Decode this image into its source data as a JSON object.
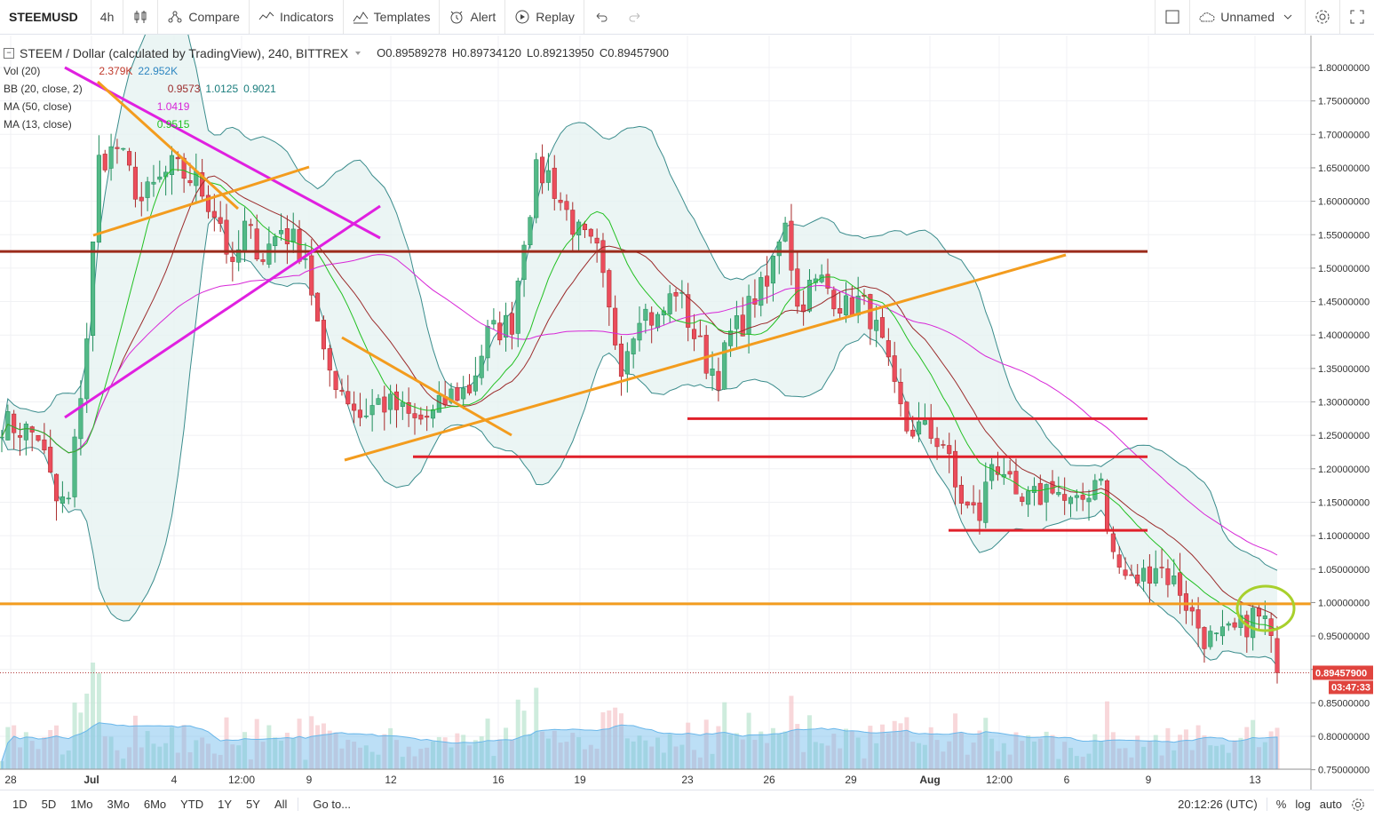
{
  "toolbar": {
    "symbol": "STEEMUSD",
    "interval": "4h",
    "compare": "Compare",
    "indicators": "Indicators",
    "templates": "Templates",
    "alert": "Alert",
    "replay": "Replay",
    "layout_name": "Unnamed"
  },
  "legend": {
    "title": "STEEM / Dollar (calculated by TradingView), 240, BITTREX",
    "open": "O0.89589278",
    "high": "H0.89734120",
    "low": "L0.89213950",
    "close": "C0.89457900",
    "vol_label": "Vol (20)",
    "vol_v1": "2.379K",
    "vol_v2": "22.952K",
    "bb_label": "BB (20, close, 2)",
    "bb_v1": "0.9573",
    "bb_v2": "1.0125",
    "bb_v3": "0.9021",
    "ma50_label": "MA (50, close)",
    "ma50_v": "1.0419",
    "ma13_label": "MA (13, close)",
    "ma13_v": "0.9515"
  },
  "bottom": {
    "ranges": [
      "1D",
      "5D",
      "1Mo",
      "3Mo",
      "6Mo",
      "YTD",
      "1Y",
      "5Y",
      "All"
    ],
    "goto": "Go to...",
    "time": "20:12:26 (UTC)",
    "pct": "%",
    "log": "log",
    "auto": "auto"
  },
  "colors": {
    "up": "#53b987",
    "down": "#eb4d5c",
    "bb_fill": "#e6f2f1",
    "bb_line": "#3a8c8c",
    "ma50": "#d726d7",
    "ma13": "#22c022",
    "bb_basis": "#9b2b2b",
    "volume_ma": "#6ab7ea"
  },
  "chart_data": {
    "type": "candlestick",
    "y_axis": {
      "ticks": [
        "1.80000000",
        "1.75000000",
        "1.70000000",
        "1.65000000",
        "1.60000000",
        "1.55000000",
        "1.50000000",
        "1.45000000",
        "1.40000000",
        "1.35000000",
        "1.30000000",
        "1.25000000",
        "1.20000000",
        "1.15000000",
        "1.10000000",
        "1.05000000",
        "1.00000000",
        "0.95000000",
        "0.90000000",
        "0.85000000",
        "0.80000000",
        "0.75000000"
      ],
      "range": [
        0.745,
        1.83
      ]
    },
    "x_axis": {
      "tick_labels": [
        "28",
        "Jul",
        "4",
        "12:00",
        "9",
        "12",
        "16",
        "19",
        "23",
        "26",
        "29",
        "Aug",
        "12:00",
        "6",
        "9",
        "13"
      ]
    },
    "last_price_label": "0.89457900",
    "countdown_label": "03:47:33",
    "close_path": [
      [
        0,
        1.27
      ],
      [
        6,
        1.25
      ],
      [
        9,
        1.15
      ],
      [
        11,
        1.15
      ],
      [
        14,
        1.4
      ],
      [
        16,
        1.66
      ],
      [
        19,
        1.68
      ],
      [
        23,
        1.6
      ],
      [
        28,
        1.65
      ],
      [
        32,
        1.63
      ],
      [
        36,
        1.57
      ],
      [
        38,
        1.49
      ],
      [
        40,
        1.56
      ],
      [
        43,
        1.52
      ],
      [
        46,
        1.56
      ],
      [
        48,
        1.54
      ],
      [
        50,
        1.52
      ],
      [
        53,
        1.36
      ],
      [
        56,
        1.32
      ],
      [
        59,
        1.28
      ],
      [
        62,
        1.3
      ],
      [
        65,
        1.29
      ],
      [
        68,
        1.27
      ],
      [
        71,
        1.28
      ],
      [
        74,
        1.31
      ],
      [
        77,
        1.32
      ],
      [
        80,
        1.4
      ],
      [
        84,
        1.42
      ],
      [
        86,
        1.55
      ],
      [
        88,
        1.64
      ],
      [
        90,
        1.64
      ],
      [
        92,
        1.6
      ],
      [
        95,
        1.55
      ],
      [
        98,
        1.52
      ],
      [
        100,
        1.43
      ],
      [
        102,
        1.36
      ],
      [
        105,
        1.44
      ],
      [
        108,
        1.42
      ],
      [
        111,
        1.47
      ],
      [
        114,
        1.4
      ],
      [
        116,
        1.36
      ],
      [
        118,
        1.34
      ],
      [
        120,
        1.4
      ],
      [
        122,
        1.42
      ],
      [
        124,
        1.46
      ],
      [
        126,
        1.47
      ],
      [
        128,
        1.55
      ],
      [
        129,
        1.58
      ],
      [
        131,
        1.44
      ],
      [
        133,
        1.47
      ],
      [
        135,
        1.48
      ],
      [
        137,
        1.46
      ],
      [
        139,
        1.44
      ],
      [
        141,
        1.45
      ],
      [
        143,
        1.43
      ],
      [
        145,
        1.38
      ],
      [
        147,
        1.31
      ],
      [
        149,
        1.26
      ],
      [
        151,
        1.26
      ],
      [
        153,
        1.25
      ],
      [
        155,
        1.24
      ],
      [
        157,
        1.17
      ],
      [
        159,
        1.14
      ],
      [
        161,
        1.13
      ],
      [
        163,
        1.21
      ],
      [
        165,
        1.2
      ],
      [
        167,
        1.14
      ],
      [
        169,
        1.15
      ],
      [
        171,
        1.16
      ],
      [
        173,
        1.18
      ],
      [
        175,
        1.15
      ],
      [
        177,
        1.14
      ],
      [
        179,
        1.17
      ],
      [
        181,
        1.2
      ],
      [
        182,
        1.1
      ],
      [
        184,
        1.05
      ],
      [
        186,
        1.03
      ],
      [
        188,
        1.04
      ],
      [
        190,
        1.06
      ],
      [
        192,
        1.04
      ],
      [
        194,
        1.02
      ],
      [
        196,
        0.98
      ],
      [
        198,
        0.95
      ],
      [
        200,
        0.94
      ],
      [
        202,
        0.95
      ],
      [
        204,
        0.96
      ],
      [
        206,
        0.98
      ],
      [
        208,
        0.97
      ],
      [
        210,
        0.895
      ]
    ],
    "overlays": [
      "Bollinger Bands (20, close, 2)",
      "MA (50, close)",
      "MA (13, close)",
      "Volume (20)"
    ],
    "drawings": {
      "horizontal_levels": [
        {
          "price": 1.525,
          "color": "#9b2b1b"
        },
        {
          "price": 0.998,
          "color": "#f39c1e"
        },
        {
          "price": 1.275,
          "color": "#e0202a"
        },
        {
          "price": 1.218,
          "color": "#e0202a"
        },
        {
          "price": 1.108,
          "color": "#e0202a"
        }
      ],
      "trendline_colors": [
        "#e020e0",
        "#f39c1e"
      ]
    }
  }
}
